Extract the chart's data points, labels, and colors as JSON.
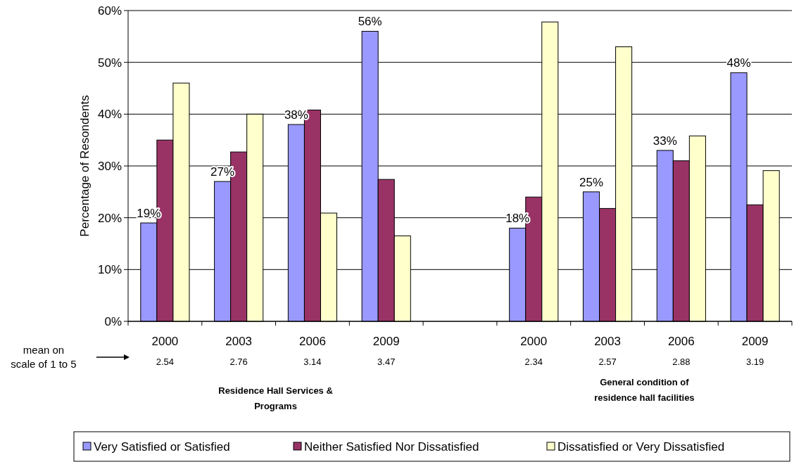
{
  "chart_data": {
    "type": "bar",
    "ylabel": "Percentage of Resondents",
    "categories": [
      "2000",
      "2003",
      "2006",
      "2009",
      null,
      "2000",
      "2003",
      "2006",
      "2009"
    ],
    "series": [
      {
        "name": "Very Satisfied or Satisfied",
        "color": "#9999ff",
        "values": [
          19,
          27,
          38,
          56,
          null,
          18,
          25,
          33,
          48
        ],
        "value_labels": [
          "19%",
          "27%",
          "38%",
          "56%",
          null,
          "18%",
          "25%",
          "33%",
          "48%"
        ]
      },
      {
        "name": "Neither Satisfied Nor Dissatisfied",
        "color": "#993366",
        "values": [
          35,
          32.7,
          40.8,
          27.4,
          null,
          24,
          21.8,
          31,
          22.5
        ]
      },
      {
        "name": "Dissatisfied or Very Dissatisfied",
        "color": "#ffffcc",
        "values": [
          46,
          40,
          20.9,
          16.5,
          null,
          57.8,
          53,
          35.8,
          29.1
        ]
      }
    ],
    "ylim": [
      0,
      60
    ],
    "yticks": [
      {
        "value": 0,
        "label": "0%"
      },
      {
        "value": 10,
        "label": "10%"
      },
      {
        "value": 20,
        "label": "20%"
      },
      {
        "value": 30,
        "label": "30%"
      },
      {
        "value": 40,
        "label": "40%"
      },
      {
        "value": 50,
        "label": "50%"
      },
      {
        "value": 60,
        "label": "60%"
      }
    ],
    "grid": "y",
    "legend": "bottom",
    "annotations": [
      "mean on scale of 1 to 5",
      "2.54",
      "2.76",
      "3.14",
      "3.47",
      "2.34",
      "2.57",
      "2.88",
      "3.19",
      "Residence Hall Services & Programs",
      "General condition of residence hall facilities"
    ]
  }
}
